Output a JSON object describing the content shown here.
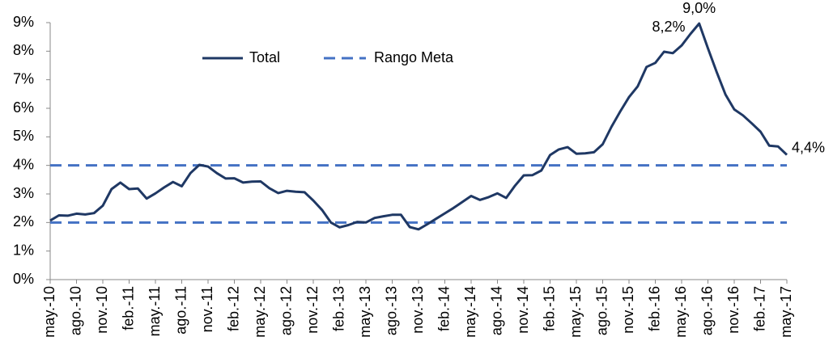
{
  "chart_data": {
    "type": "line",
    "categories": [
      "may.-10",
      null,
      null,
      "ago.-10",
      null,
      null,
      "nov.-10",
      null,
      null,
      "feb.-11",
      null,
      null,
      "may.-11",
      null,
      null,
      "ago.-11",
      null,
      null,
      "nov.-11",
      null,
      null,
      "feb.-12",
      null,
      null,
      "may.-12",
      null,
      null,
      "ago.-12",
      null,
      null,
      "nov.-12",
      null,
      null,
      "feb.-13",
      null,
      null,
      "may.-13",
      null,
      null,
      "ago.-13",
      null,
      null,
      "nov.-13",
      null,
      null,
      "feb.-14",
      null,
      null,
      "may.-14",
      null,
      null,
      "ago.-14",
      null,
      null,
      "nov.-14",
      null,
      null,
      "feb.-15",
      null,
      null,
      "may.-15",
      null,
      null,
      "ago.-15",
      null,
      null,
      "nov.-15",
      null,
      null,
      "feb.-16",
      null,
      null,
      "may.-16",
      null,
      null,
      "ago.-16",
      null,
      null,
      "nov.-16",
      null,
      null,
      "feb.-17",
      null,
      null,
      "may.-17"
    ],
    "series": [
      {
        "name": "Total",
        "color": "#1f3864",
        "values": [
          2.07,
          2.25,
          2.24,
          2.31,
          2.28,
          2.33,
          2.59,
          3.17,
          3.4,
          3.17,
          3.19,
          2.84,
          3.02,
          3.23,
          3.42,
          3.27,
          3.73,
          4.02,
          3.96,
          3.73,
          3.54,
          3.55,
          3.4,
          3.43,
          3.44,
          3.2,
          3.03,
          3.11,
          3.08,
          3.06,
          2.77,
          2.44,
          2.0,
          1.83,
          1.91,
          2.02,
          2.0,
          2.16,
          2.22,
          2.27,
          2.27,
          1.84,
          1.76,
          1.94,
          2.13,
          2.32,
          2.51,
          2.72,
          2.93,
          2.79,
          2.89,
          3.02,
          2.86,
          3.29,
          3.65,
          3.66,
          3.82,
          4.36,
          4.56,
          4.64,
          4.41,
          4.42,
          4.46,
          4.74,
          5.35,
          5.89,
          6.39,
          6.77,
          7.45,
          7.59,
          7.98,
          7.93,
          8.2,
          8.6,
          8.97,
          8.1,
          7.27,
          6.48,
          5.96,
          5.75,
          5.47,
          5.18,
          4.69,
          4.66,
          4.37
        ],
        "value_labels": [
          null,
          null,
          null,
          null,
          null,
          null,
          null,
          null,
          null,
          null,
          null,
          null,
          null,
          null,
          null,
          null,
          null,
          null,
          null,
          null,
          null,
          null,
          null,
          null,
          null,
          null,
          null,
          null,
          null,
          null,
          null,
          null,
          null,
          null,
          null,
          null,
          null,
          null,
          null,
          null,
          null,
          null,
          null,
          null,
          null,
          null,
          null,
          null,
          null,
          null,
          null,
          null,
          null,
          null,
          null,
          null,
          null,
          null,
          null,
          null,
          null,
          null,
          null,
          null,
          null,
          null,
          null,
          null,
          null,
          null,
          null,
          null,
          "8,2%",
          null,
          "9,0%",
          null,
          null,
          null,
          null,
          null,
          null,
          null,
          null,
          null,
          "4,4%"
        ]
      }
    ],
    "target_range": {
      "name": "Rango Meta",
      "color": "#4472c4",
      "values": [
        2,
        4
      ]
    },
    "ylim": [
      0,
      9
    ],
    "yticks": [
      {
        "value": 0,
        "label": "0%"
      },
      {
        "value": 1,
        "label": "1%"
      },
      {
        "value": 2,
        "label": "2%"
      },
      {
        "value": 3,
        "label": "3%"
      },
      {
        "value": 4,
        "label": "4%"
      },
      {
        "value": 5,
        "label": "5%"
      },
      {
        "value": 6,
        "label": "6%"
      },
      {
        "value": 7,
        "label": "7%"
      },
      {
        "value": 8,
        "label": "8%"
      },
      {
        "value": 9,
        "label": "9%"
      }
    ],
    "legend": "top"
  }
}
